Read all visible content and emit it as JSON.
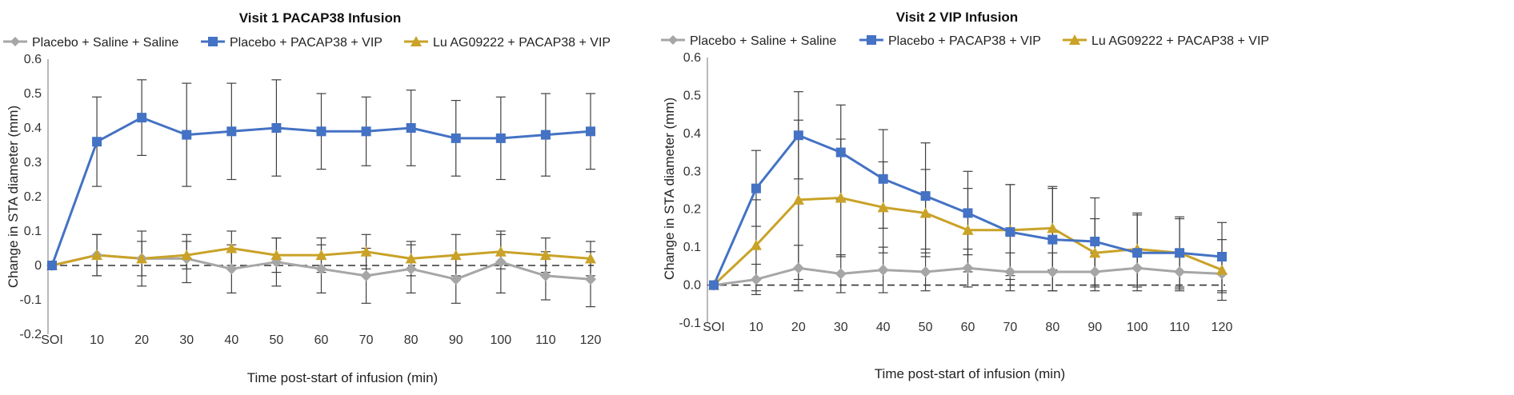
{
  "chart_data": [
    {
      "type": "line",
      "title": "Visit 1 PACAP38 Infusion",
      "xlabel": "Time post-start of infusion (min)",
      "ylabel": "Change in STA diameter (mm)",
      "categories": [
        "SOI",
        "10",
        "20",
        "30",
        "40",
        "50",
        "60",
        "70",
        "80",
        "90",
        "100",
        "110",
        "120"
      ],
      "x": [
        0,
        10,
        20,
        30,
        40,
        50,
        60,
        70,
        80,
        90,
        100,
        110,
        120
      ],
      "ylim": [
        -0.2,
        0.6
      ],
      "yticks": [
        "-0.2",
        "-0.1",
        "0",
        "0.1",
        "0.2",
        "0.3",
        "0.4",
        "0.5",
        "0.6"
      ],
      "ytick_values": [
        -0.2,
        -0.1,
        0,
        0.1,
        0.2,
        0.3,
        0.4,
        0.5,
        0.6
      ],
      "baseline": 0,
      "grid": false,
      "legend": "top",
      "series": [
        {
          "name": "Placebo + Saline + Saline",
          "color": "#a6a6a6",
          "marker": "diamond",
          "values": [
            0,
            0.03,
            0.02,
            0.02,
            -0.01,
            0.01,
            -0.01,
            -0.03,
            -0.01,
            -0.04,
            0.01,
            -0.03,
            -0.04
          ],
          "errors": [
            0,
            0.06,
            0.08,
            0.07,
            0.07,
            0.07,
            0.07,
            0.08,
            0.07,
            0.07,
            0.09,
            0.07,
            0.08
          ]
        },
        {
          "name": "Placebo + PACAP38 + VIP",
          "color": "#4472c4",
          "marker": "square",
          "values": [
            0,
            0.36,
            0.43,
            0.38,
            0.39,
            0.4,
            0.39,
            0.39,
            0.4,
            0.37,
            0.37,
            0.38,
            0.39
          ],
          "errors": [
            0,
            0.13,
            0.11,
            0.15,
            0.14,
            0.14,
            0.11,
            0.1,
            0.11,
            0.11,
            0.12,
            0.12,
            0.11
          ]
        },
        {
          "name": "Lu AG09222 + PACAP38 + VIP",
          "color": "#c9a227",
          "marker": "triangle",
          "values": [
            0,
            0.03,
            0.02,
            0.03,
            0.05,
            0.03,
            0.03,
            0.04,
            0.02,
            0.03,
            0.04,
            0.03,
            0.02
          ],
          "errors": [
            0,
            0.06,
            0.05,
            0.04,
            0.05,
            0.05,
            0.05,
            0.05,
            0.05,
            0.06,
            0.05,
            0.05,
            0.05
          ]
        }
      ]
    },
    {
      "type": "line",
      "title": "Visit 2 VIP Infusion",
      "xlabel": "Time post-start of infusion (min)",
      "ylabel": "Change in STA diameter (mm)",
      "categories": [
        "SOI",
        "10",
        "20",
        "30",
        "40",
        "50",
        "60",
        "70",
        "80",
        "90",
        "100",
        "110",
        "120"
      ],
      "x": [
        0,
        10,
        20,
        30,
        40,
        50,
        60,
        70,
        80,
        90,
        100,
        110,
        120
      ],
      "ylim": [
        -0.1,
        0.6
      ],
      "yticks": [
        "-0.1",
        "0.0",
        "0.1",
        "0.2",
        "0.3",
        "0.4",
        "0.5",
        "0.6"
      ],
      "ytick_values": [
        -0.1,
        0,
        0.1,
        0.2,
        0.3,
        0.4,
        0.5,
        0.6
      ],
      "baseline": 0,
      "grid": false,
      "legend": "top",
      "series": [
        {
          "name": "Placebo + Saline + Saline",
          "color": "#a6a6a6",
          "marker": "diamond",
          "values": [
            0,
            0.015,
            0.045,
            0.03,
            0.04,
            0.035,
            0.045,
            0.035,
            0.035,
            0.035,
            0.045,
            0.035,
            0.03
          ],
          "errors": [
            0,
            0.04,
            0.06,
            0.05,
            0.06,
            0.05,
            0.05,
            0.05,
            0.05,
            0.05,
            0.05,
            0.05,
            0.05
          ]
        },
        {
          "name": "Placebo + PACAP38 + VIP",
          "color": "#4472c4",
          "marker": "square",
          "values": [
            0,
            0.255,
            0.395,
            0.35,
            0.28,
            0.235,
            0.19,
            0.14,
            0.12,
            0.115,
            0.085,
            0.085,
            0.075
          ],
          "errors": [
            0,
            0.1,
            0.115,
            0.125,
            0.13,
            0.14,
            0.11,
            0.125,
            0.135,
            0.115,
            0.1,
            0.095,
            0.09
          ]
        },
        {
          "name": "Lu AG09222 + PACAP38 + VIP",
          "color": "#c9a227",
          "marker": "triangle",
          "values": [
            0,
            0.105,
            0.225,
            0.23,
            0.205,
            0.19,
            0.145,
            0.145,
            0.15,
            0.085,
            0.095,
            0.085,
            0.04
          ],
          "errors": [
            0,
            0.12,
            0.21,
            0.155,
            0.12,
            0.115,
            0.11,
            0.12,
            0.11,
            0.09,
            0.095,
            0.09,
            0.08
          ]
        }
      ]
    }
  ]
}
